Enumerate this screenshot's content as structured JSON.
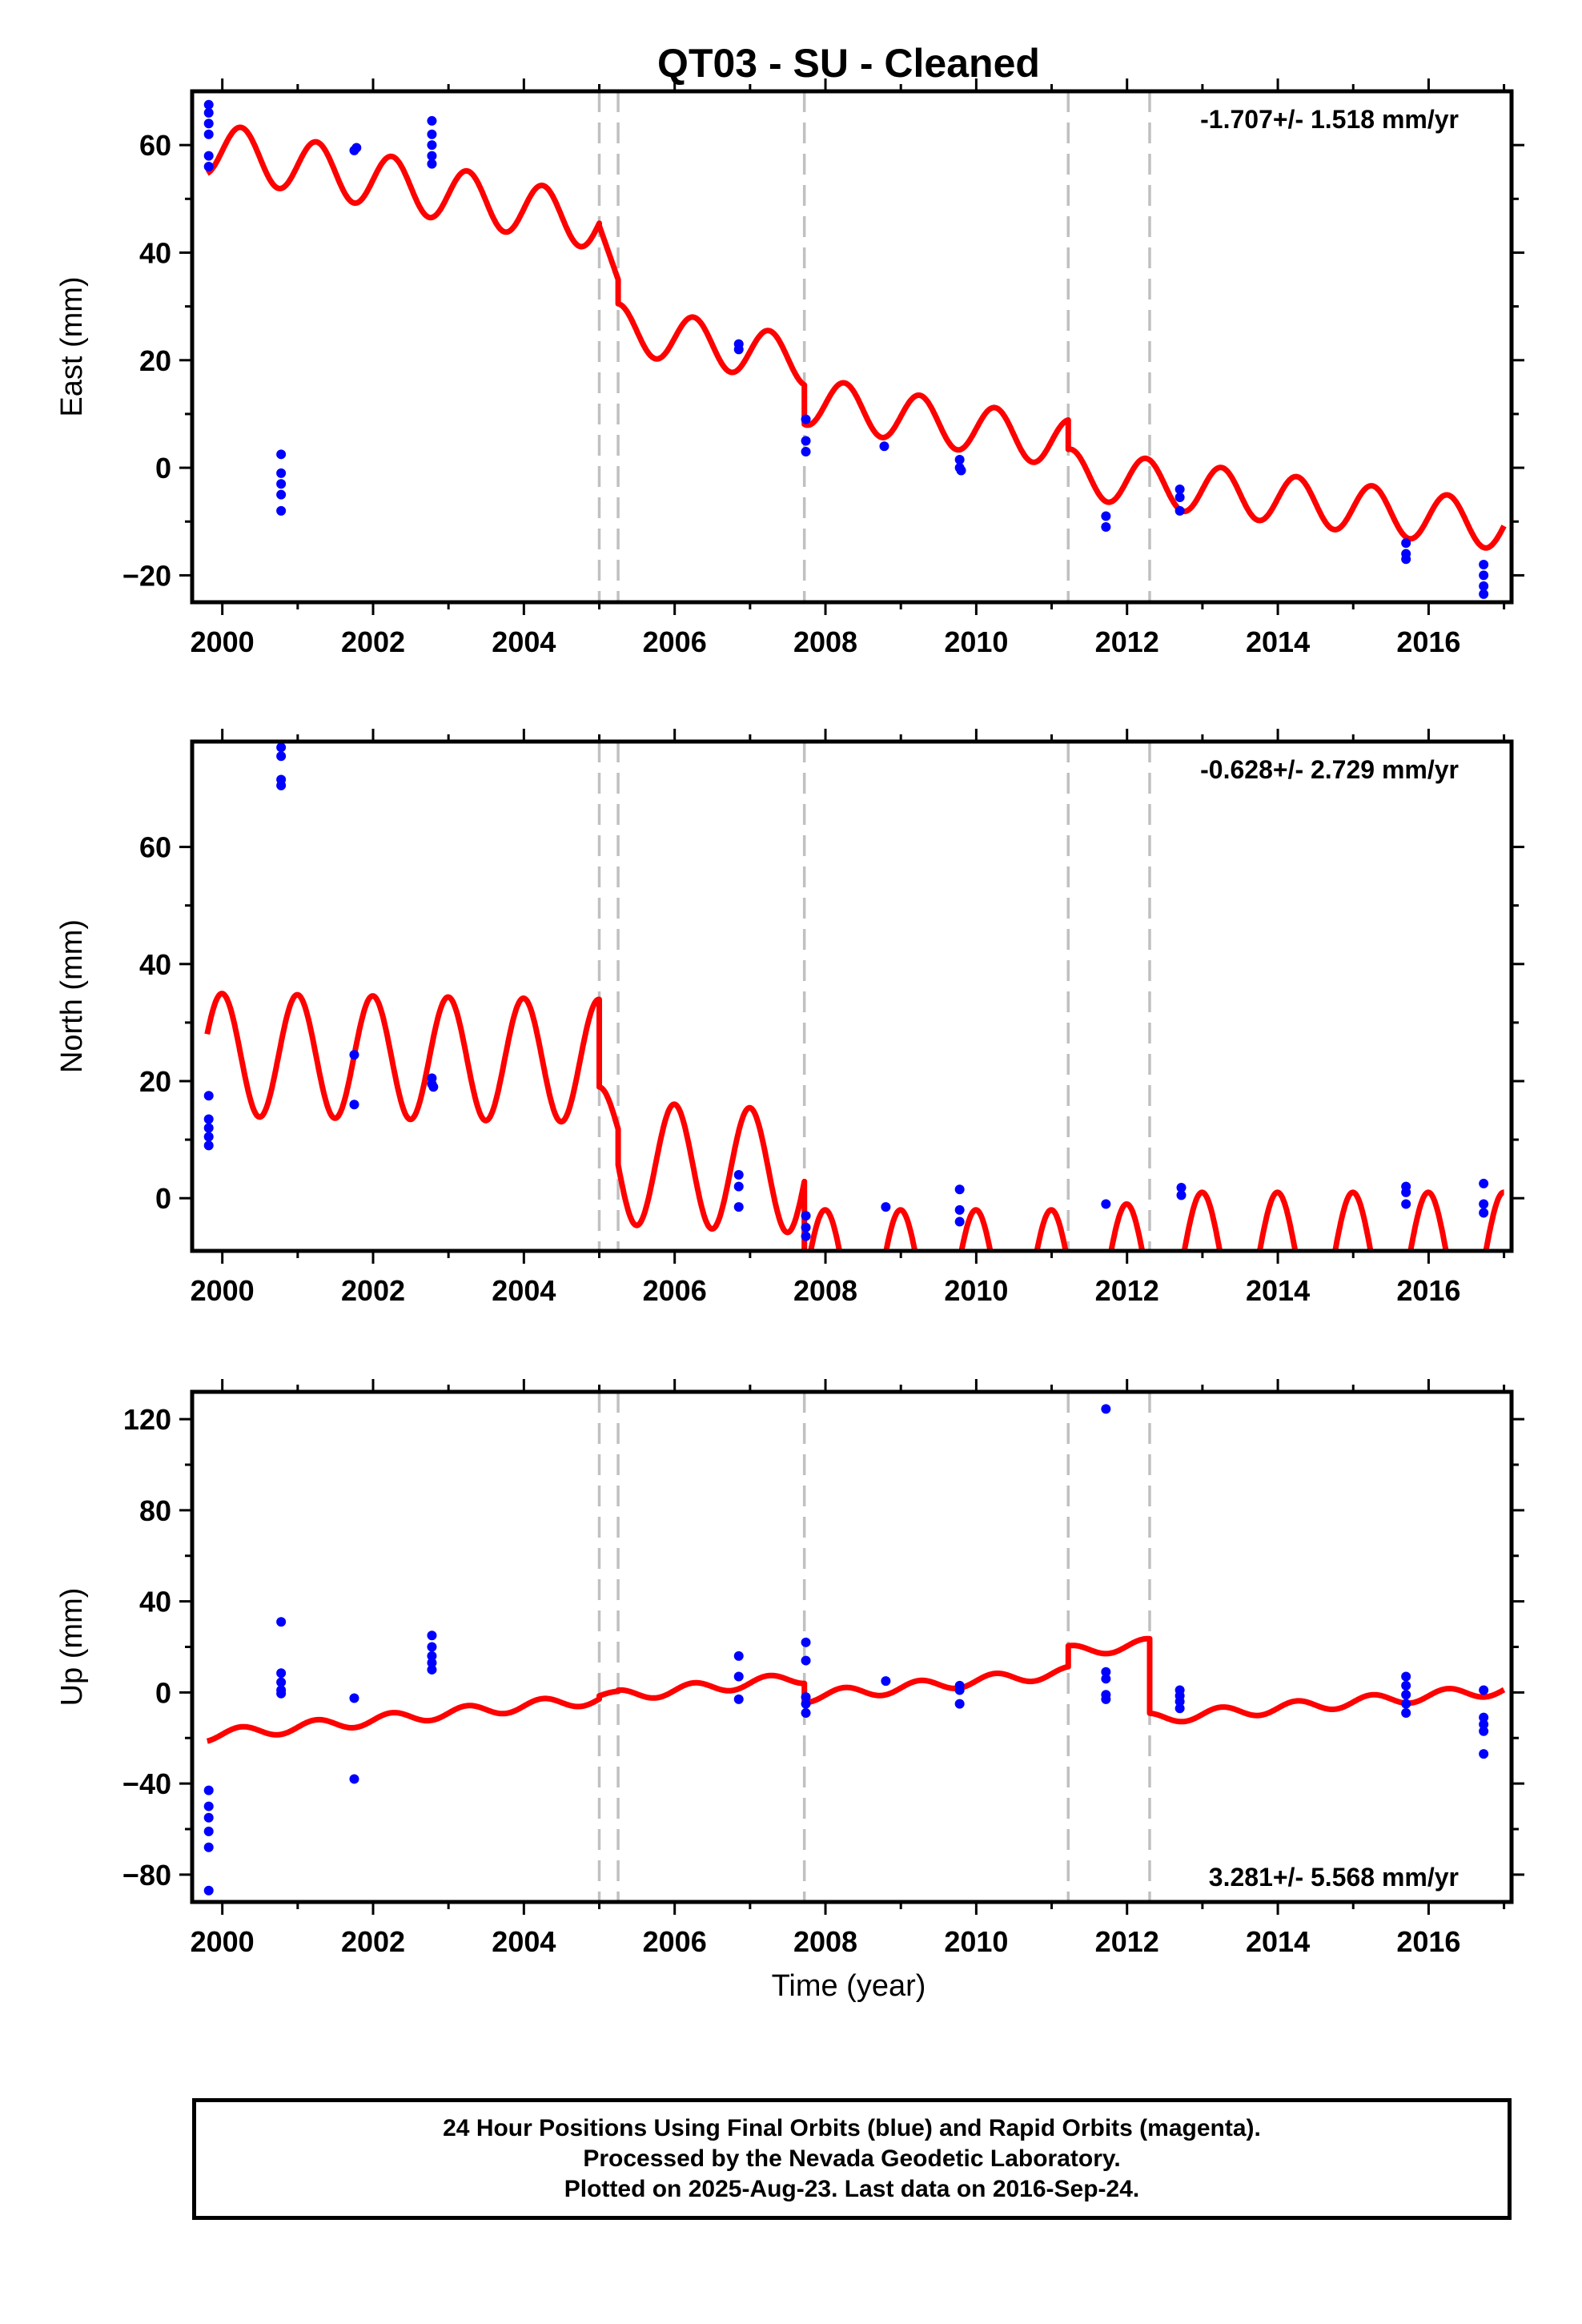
{
  "title": "QT03  - SU - Cleaned",
  "xlabel": "Time (year)",
  "x_ticks": [
    2000,
    2002,
    2004,
    2006,
    2008,
    2010,
    2012,
    2014,
    2016
  ],
  "xlim": [
    1999.6,
    2017.1
  ],
  "breaks": [
    2005.0,
    2005.25,
    2007.72,
    2011.22,
    2012.3
  ],
  "colors": {
    "model": "#ff0000",
    "final_orbits": "#0000ff",
    "rapid_orbits": "#ff00ff",
    "breaks": "#c0c0c0",
    "frame": "#000000"
  },
  "chart_data": [
    {
      "type": "scatter",
      "panel": "east",
      "ylabel": "East (mm)",
      "ylim": [
        -25,
        70
      ],
      "y_ticks": [
        -20,
        0,
        20,
        40,
        60
      ],
      "rate_label": "-1.707+/- 1.518 mm/yr",
      "model": {
        "name": "model",
        "segments": [
          {
            "start": 1999.8,
            "end": 2005.0,
            "offset": 59.5,
            "slope": -2.7,
            "amplitude": 5.0,
            "phase": 0.0
          },
          {
            "start": 2005.0,
            "end": 2005.25,
            "offset": 45.0,
            "slope": -40.0,
            "amplitude": 0.0,
            "phase": 0.0
          },
          {
            "start": 2005.25,
            "end": 2007.72,
            "offset": 26.0,
            "slope": -2.5,
            "amplitude": 4.5,
            "phase": 0.0
          },
          {
            "start": 2007.72,
            "end": 2011.22,
            "offset": 12.5,
            "slope": -2.3,
            "amplitude": 4.5,
            "phase": 0.0
          },
          {
            "start": 2011.22,
            "end": 2017.0,
            "offset": -1.0,
            "slope": -1.7,
            "amplitude": 4.5,
            "phase": 0.0
          }
        ]
      },
      "points": [
        {
          "x": 1999.82,
          "y": 67.5
        },
        {
          "x": 1999.82,
          "y": 66
        },
        {
          "x": 1999.82,
          "y": 64
        },
        {
          "x": 1999.82,
          "y": 62
        },
        {
          "x": 1999.82,
          "y": 58
        },
        {
          "x": 1999.82,
          "y": 56
        },
        {
          "x": 2000.78,
          "y": 2.5
        },
        {
          "x": 2000.78,
          "y": -1
        },
        {
          "x": 2000.78,
          "y": -3
        },
        {
          "x": 2000.78,
          "y": -5
        },
        {
          "x": 2000.78,
          "y": -8
        },
        {
          "x": 2001.75,
          "y": 59
        },
        {
          "x": 2001.78,
          "y": 59.5
        },
        {
          "x": 2002.78,
          "y": 64.5
        },
        {
          "x": 2002.78,
          "y": 62
        },
        {
          "x": 2002.78,
          "y": 60
        },
        {
          "x": 2002.78,
          "y": 58
        },
        {
          "x": 2002.78,
          "y": 56.5
        },
        {
          "x": 2006.85,
          "y": 23
        },
        {
          "x": 2006.85,
          "y": 22
        },
        {
          "x": 2007.74,
          "y": 9
        },
        {
          "x": 2007.74,
          "y": 5
        },
        {
          "x": 2007.74,
          "y": 3
        },
        {
          "x": 2008.78,
          "y": 4
        },
        {
          "x": 2009.78,
          "y": 1.5
        },
        {
          "x": 2009.78,
          "y": 0
        },
        {
          "x": 2009.8,
          "y": -0.5
        },
        {
          "x": 2011.72,
          "y": -9
        },
        {
          "x": 2011.72,
          "y": -11
        },
        {
          "x": 2012.7,
          "y": -4
        },
        {
          "x": 2012.7,
          "y": -5.5
        },
        {
          "x": 2012.7,
          "y": -8
        },
        {
          "x": 2015.7,
          "y": -14
        },
        {
          "x": 2015.7,
          "y": -16
        },
        {
          "x": 2015.7,
          "y": -17
        },
        {
          "x": 2016.73,
          "y": -18
        },
        {
          "x": 2016.73,
          "y": -20
        },
        {
          "x": 2016.73,
          "y": -22
        },
        {
          "x": 2016.73,
          "y": -23.5
        }
      ]
    },
    {
      "type": "scatter",
      "panel": "north",
      "ylabel": "North (mm)",
      "ylim": [
        -9,
        78
      ],
      "y_ticks": [
        0,
        20,
        40,
        60
      ],
      "rate_label": "-0.628+/- 2.729 mm/yr",
      "model": {
        "name": "model",
        "segments": [
          {
            "start": 1999.8,
            "end": 2005.0,
            "offset": 24.5,
            "slope": -0.2,
            "amplitude": 10.5,
            "phase": 1.6
          },
          {
            "start": 2005.0,
            "end": 2005.25,
            "offset": 12.0,
            "slope": 0.0,
            "amplitude": 7.0,
            "phase": 1.6
          },
          {
            "start": 2005.25,
            "end": 2007.72,
            "offset": 6.0,
            "slope": -0.6,
            "amplitude": 10.5,
            "phase": 1.6
          },
          {
            "start": 2007.72,
            "end": 2011.22,
            "offset": -13.0,
            "slope": 0.0,
            "amplitude": 11.0,
            "phase": 1.6
          },
          {
            "start": 2011.22,
            "end": 2012.3,
            "offset": -12.0,
            "slope": 0.0,
            "amplitude": 11.0,
            "phase": 1.6
          },
          {
            "start": 2012.3,
            "end": 2017.0,
            "offset": -10.0,
            "slope": 0.0,
            "amplitude": 11.0,
            "phase": 1.6
          }
        ]
      },
      "points": [
        {
          "x": 1999.82,
          "y": 17.5
        },
        {
          "x": 1999.82,
          "y": 13.5
        },
        {
          "x": 1999.82,
          "y": 12
        },
        {
          "x": 1999.82,
          "y": 10.5
        },
        {
          "x": 1999.82,
          "y": 9
        },
        {
          "x": 2000.78,
          "y": 77
        },
        {
          "x": 2000.78,
          "y": 75.5
        },
        {
          "x": 2000.78,
          "y": 71.5
        },
        {
          "x": 2000.78,
          "y": 70.5
        },
        {
          "x": 2001.75,
          "y": 24.5
        },
        {
          "x": 2001.75,
          "y": 16
        },
        {
          "x": 2002.78,
          "y": 20.5
        },
        {
          "x": 2002.78,
          "y": 19.5
        },
        {
          "x": 2002.8,
          "y": 19
        },
        {
          "x": 2006.85,
          "y": 4
        },
        {
          "x": 2006.85,
          "y": 2
        },
        {
          "x": 2006.85,
          "y": -1.5
        },
        {
          "x": 2007.74,
          "y": -3
        },
        {
          "x": 2007.74,
          "y": -5
        },
        {
          "x": 2007.74,
          "y": -6.5
        },
        {
          "x": 2008.8,
          "y": -1.5
        },
        {
          "x": 2009.78,
          "y": 1.5
        },
        {
          "x": 2009.78,
          "y": -2
        },
        {
          "x": 2009.78,
          "y": -4
        },
        {
          "x": 2011.72,
          "y": -1
        },
        {
          "x": 2012.72,
          "y": 1.8
        },
        {
          "x": 2012.72,
          "y": 0.5
        },
        {
          "x": 2015.7,
          "y": 2
        },
        {
          "x": 2015.7,
          "y": 1
        },
        {
          "x": 2015.7,
          "y": -1
        },
        {
          "x": 2016.73,
          "y": 2.5
        },
        {
          "x": 2016.73,
          "y": -1
        },
        {
          "x": 2016.73,
          "y": -2.5
        }
      ]
    },
    {
      "type": "scatter",
      "panel": "up",
      "ylabel": "Up (mm)",
      "ylim": [
        -92,
        132
      ],
      "y_ticks": [
        -80,
        -40,
        0,
        40,
        80,
        120
      ],
      "rate_label": "3.281+/- 5.568 mm/yr",
      "model": {
        "name": "model",
        "segments": [
          {
            "start": 1999.8,
            "end": 2005.0,
            "offset": -19.0,
            "slope": 3.1,
            "amplitude": 2.5,
            "phase": 0.0
          },
          {
            "start": 2005.0,
            "end": 2005.25,
            "offset": -1.5,
            "slope": 2.0,
            "amplitude": 1.5,
            "phase": 0.0
          },
          {
            "start": 2005.25,
            "end": 2007.72,
            "offset": -1.5,
            "slope": 3.2,
            "amplitude": 2.5,
            "phase": 0.0
          },
          {
            "start": 2007.72,
            "end": 2011.22,
            "offset": -2.0,
            "slope": 3.1,
            "amplitude": 2.5,
            "phase": 0.0
          },
          {
            "start": 2011.22,
            "end": 2012.3,
            "offset": 18.0,
            "slope": 3.0,
            "amplitude": 2.5,
            "phase": 0.0
          },
          {
            "start": 2012.3,
            "end": 2017.0,
            "offset": -11.5,
            "slope": 2.7,
            "amplitude": 2.5,
            "phase": 0.0
          }
        ]
      },
      "points": [
        {
          "x": 1999.82,
          "y": -43
        },
        {
          "x": 1999.82,
          "y": -50
        },
        {
          "x": 1999.82,
          "y": -55
        },
        {
          "x": 1999.82,
          "y": -61
        },
        {
          "x": 1999.82,
          "y": -68
        },
        {
          "x": 1999.82,
          "y": -87
        },
        {
          "x": 2000.78,
          "y": 31
        },
        {
          "x": 2000.78,
          "y": 8.5
        },
        {
          "x": 2000.78,
          "y": 4.5
        },
        {
          "x": 2000.78,
          "y": 1
        },
        {
          "x": 2000.78,
          "y": -0.5
        },
        {
          "x": 2001.75,
          "y": -2.5
        },
        {
          "x": 2001.75,
          "y": -38
        },
        {
          "x": 2002.78,
          "y": 25
        },
        {
          "x": 2002.78,
          "y": 20
        },
        {
          "x": 2002.78,
          "y": 16
        },
        {
          "x": 2002.78,
          "y": 13
        },
        {
          "x": 2002.78,
          "y": 10
        },
        {
          "x": 2006.85,
          "y": 16
        },
        {
          "x": 2006.85,
          "y": 7
        },
        {
          "x": 2006.85,
          "y": -3
        },
        {
          "x": 2007.74,
          "y": 22
        },
        {
          "x": 2007.74,
          "y": 14
        },
        {
          "x": 2007.74,
          "y": -2
        },
        {
          "x": 2007.74,
          "y": -5
        },
        {
          "x": 2007.74,
          "y": -9
        },
        {
          "x": 2008.8,
          "y": 5
        },
        {
          "x": 2009.78,
          "y": 3
        },
        {
          "x": 2009.78,
          "y": 1
        },
        {
          "x": 2009.78,
          "y": -5
        },
        {
          "x": 2011.72,
          "y": 124.5
        },
        {
          "x": 2011.72,
          "y": 9
        },
        {
          "x": 2011.72,
          "y": 6
        },
        {
          "x": 2011.72,
          "y": -1
        },
        {
          "x": 2011.72,
          "y": -3
        },
        {
          "x": 2012.7,
          "y": 1
        },
        {
          "x": 2012.7,
          "y": -1.5
        },
        {
          "x": 2012.7,
          "y": -4
        },
        {
          "x": 2012.7,
          "y": -7
        },
        {
          "x": 2015.7,
          "y": 7
        },
        {
          "x": 2015.7,
          "y": 3
        },
        {
          "x": 2015.7,
          "y": -1
        },
        {
          "x": 2015.7,
          "y": -5
        },
        {
          "x": 2015.7,
          "y": -9
        },
        {
          "x": 2016.73,
          "y": 1
        },
        {
          "x": 2016.73,
          "y": -11
        },
        {
          "x": 2016.73,
          "y": -14
        },
        {
          "x": 2016.73,
          "y": -17
        },
        {
          "x": 2016.73,
          "y": -27
        }
      ]
    }
  ],
  "footer": {
    "line1": "24 Hour Positions Using Final Orbits (blue) and Rapid Orbits (magenta).",
    "line2": "Processed by the Nevada Geodetic Laboratory.",
    "line3": "Plotted on 2025-Aug-23. Last data on 2016-Sep-24."
  }
}
